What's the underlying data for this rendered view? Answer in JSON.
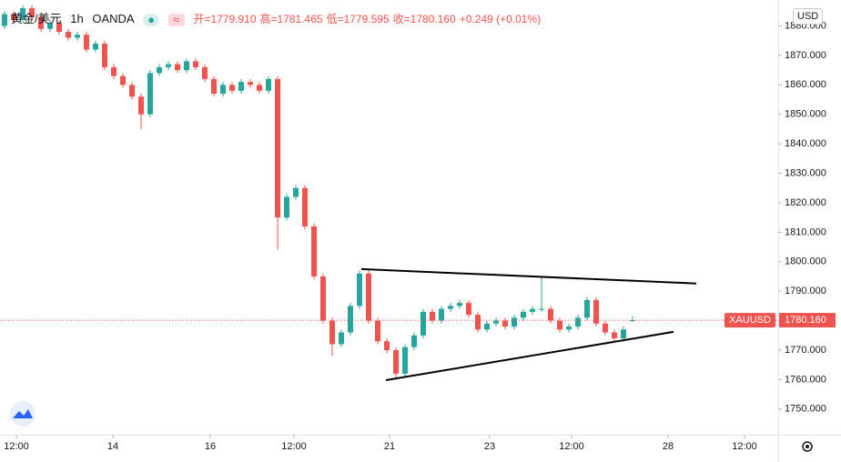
{
  "chart_data": {
    "type": "candlestick",
    "title": "黄金/美元",
    "interval": "1h",
    "source": "OANDA",
    "ohlc_header": [
      "开=1779.910",
      "高=1781.465",
      "低=1779.595",
      "收=1780.160",
      "+0.249 (+0.01%)"
    ],
    "currency": "USD",
    "up_color": "#26a69a",
    "down_color": "#ef5350",
    "open": [
      1880,
      1884,
      1882,
      1886,
      1883,
      1879,
      1881,
      1878,
      1876,
      1877,
      1872,
      1874,
      1866,
      1863,
      1860,
      1856,
      1850,
      1864,
      1866,
      1867,
      1865,
      1868,
      1866,
      1862,
      1857,
      1860,
      1858,
      1861,
      1860,
      1858,
      1862,
      1815,
      1822,
      1825,
      1812,
      1795,
      1780,
      1772,
      1776,
      1785,
      1796,
      1780,
      1773,
      1770,
      1762,
      1771,
      1775,
      1783,
      1780,
      1784,
      1785,
      1786,
      1782,
      1777,
      1779,
      1780,
      1778,
      1781,
      1783,
      1784,
      1784,
      1780,
      1777,
      1778,
      1781,
      1787,
      1779,
      1776,
      1774,
      1779.91
    ],
    "high": [
      1885,
      1885,
      1887,
      1887,
      1884,
      1882,
      1882,
      1879,
      1878,
      1878,
      1875,
      1875,
      1867,
      1864,
      1861,
      1857,
      1865,
      1867,
      1868,
      1868,
      1869,
      1869,
      1867,
      1863,
      1861,
      1861,
      1862,
      1862,
      1861,
      1863,
      1863,
      1823,
      1826,
      1826,
      1813,
      1796,
      1781,
      1777,
      1786,
      1797,
      1797,
      1781,
      1774,
      1771,
      1772,
      1776,
      1784,
      1784,
      1785,
      1786,
      1787,
      1787,
      1783,
      1780,
      1781,
      1781,
      1782,
      1784,
      1785,
      1795,
      1785,
      1781,
      1779,
      1782,
      1788,
      1788,
      1780,
      1777,
      1778,
      1781.465
    ],
    "low": [
      1879,
      1881,
      1881,
      1882,
      1878,
      1878,
      1877,
      1875,
      1875,
      1871,
      1871,
      1865,
      1862,
      1859,
      1855,
      1845,
      1849,
      1863,
      1865,
      1864,
      1864,
      1865,
      1861,
      1856,
      1856,
      1857,
      1857,
      1859,
      1857,
      1857,
      1804,
      1814,
      1821,
      1811,
      1794,
      1779,
      1768,
      1771,
      1775,
      1784,
      1779,
      1772,
      1769,
      1760,
      1761,
      1770,
      1774,
      1779,
      1779,
      1783,
      1784,
      1781,
      1776,
      1776,
      1778,
      1777,
      1777,
      1780,
      1782,
      1783,
      1779,
      1776,
      1776,
      1777,
      1780,
      1778,
      1775,
      1773,
      1773,
      1779.595
    ],
    "close": [
      1884,
      1882,
      1886,
      1883,
      1879,
      1881,
      1878,
      1876,
      1877,
      1872,
      1874,
      1866,
      1863,
      1860,
      1856,
      1850,
      1864,
      1866,
      1867,
      1865,
      1868,
      1866,
      1862,
      1857,
      1860,
      1858,
      1861,
      1860,
      1858,
      1862,
      1815,
      1822,
      1825,
      1812,
      1795,
      1780,
      1772,
      1776,
      1785,
      1796,
      1780,
      1773,
      1770,
      1762,
      1771,
      1775,
      1783,
      1780,
      1784,
      1785,
      1786,
      1782,
      1777,
      1779,
      1780,
      1778,
      1781,
      1783,
      1784,
      1784,
      1780,
      1777,
      1778,
      1781,
      1787,
      1779,
      1776,
      1774,
      1777,
      1780.16
    ],
    "xlim": [
      -0.5,
      85
    ],
    "xticks": [
      {
        "value": 1.3,
        "label": "12:00"
      },
      {
        "value": 11.9,
        "label": "14"
      },
      {
        "value": 22.6,
        "label": "16"
      },
      {
        "value": 31.8,
        "label": "12:00"
      },
      {
        "value": 42.3,
        "label": "21"
      },
      {
        "value": 53.3,
        "label": "23"
      },
      {
        "value": 62.3,
        "label": "12:00"
      },
      {
        "value": 72.9,
        "label": "28"
      },
      {
        "value": 81.3,
        "label": "12:00"
      }
    ],
    "ylim": [
      1741.3,
      1888.8
    ],
    "yticks": [
      {
        "value": 1750,
        "label": "1750.000"
      },
      {
        "value": 1760,
        "label": "1760.000"
      },
      {
        "value": 1770,
        "label": "1770.000"
      },
      {
        "value": 1780,
        "label": "1780.000"
      },
      {
        "value": 1790,
        "label": "1790.000"
      },
      {
        "value": 1800,
        "label": "1800.000"
      },
      {
        "value": 1810,
        "label": "1810.000"
      },
      {
        "value": 1820,
        "label": "1820.000"
      },
      {
        "value": 1830,
        "label": "1830.000"
      },
      {
        "value": 1840,
        "label": "1840.000"
      },
      {
        "value": 1850,
        "label": "1850.000"
      },
      {
        "value": 1860,
        "label": "1860.000"
      },
      {
        "value": 1870,
        "label": "1870.000"
      },
      {
        "value": 1880,
        "label": "1880.000"
      }
    ],
    "last_price": {
      "symbol": "XAUUSD",
      "value": 1780.16,
      "label": "1780.160",
      "color": "#ef5350"
    },
    "trendlines": [
      {
        "x": [
          39.2,
          76
        ],
        "y": [
          1797.5,
          1792.6
        ]
      },
      {
        "x": [
          41.9,
          73.5
        ],
        "y": [
          1759.8,
          1776.2
        ]
      }
    ]
  }
}
